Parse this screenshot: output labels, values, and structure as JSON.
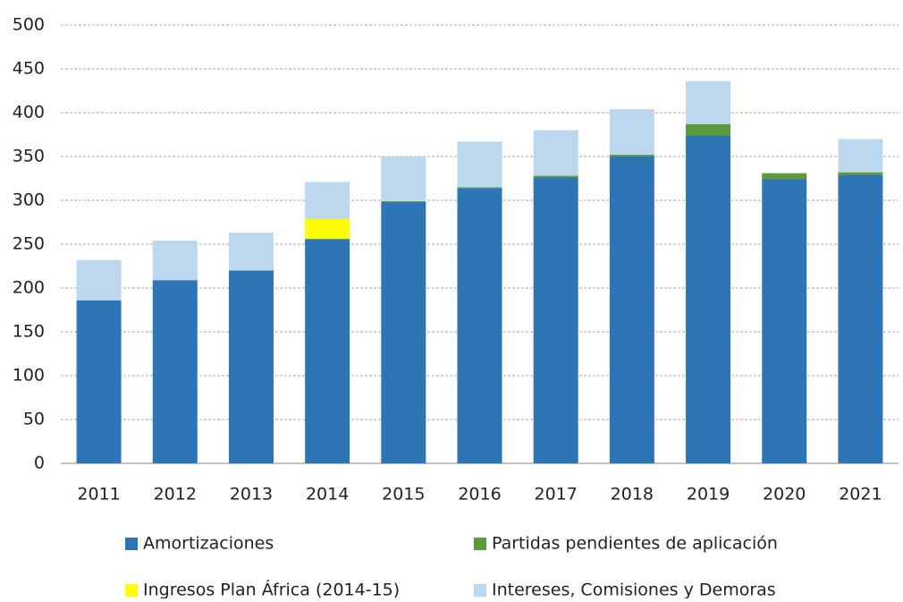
{
  "chart_data": {
    "type": "stacked_bar",
    "categories": [
      "2011",
      "2012",
      "2013",
      "2014",
      "2015",
      "2016",
      "2017",
      "2018",
      "2019",
      "2020",
      "2021"
    ],
    "series": [
      {
        "name": "Amortizaciones",
        "color": "#2e75b6",
        "values": [
          186,
          209,
          220,
          256,
          298,
          314,
          326,
          350,
          374,
          324,
          329
        ]
      },
      {
        "name": "Partidas pendientes de aplicación",
        "color": "#5b9a3c",
        "values": [
          0,
          0,
          0,
          0,
          1,
          1,
          2,
          2,
          13,
          7,
          3
        ]
      },
      {
        "name": "Ingresos Plan África (2014-15)",
        "color": "#ffff00",
        "values": [
          0,
          0,
          0,
          23,
          0,
          0,
          0,
          0,
          0,
          0,
          0
        ]
      },
      {
        "name": "Intereses, Comisiones y Demoras",
        "color": "#bdd7ee",
        "values": [
          46,
          45,
          43,
          42,
          51,
          52,
          52,
          52,
          49,
          0,
          38
        ]
      }
    ],
    "ylim": [
      0,
      500
    ],
    "yticks": [
      0,
      50,
      100,
      150,
      200,
      250,
      300,
      350,
      400,
      450,
      500
    ],
    "grid": true
  }
}
